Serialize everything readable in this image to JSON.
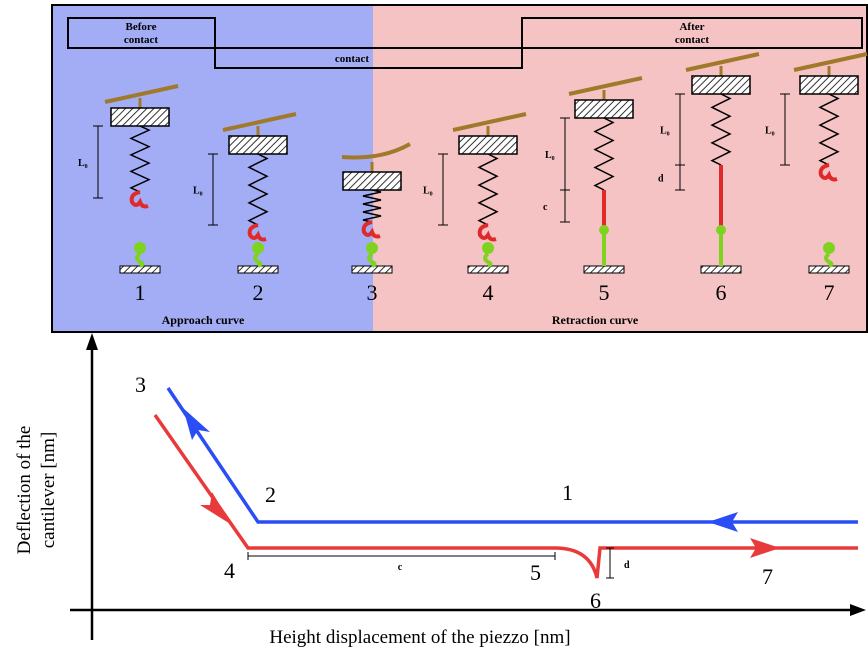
{
  "phases": {
    "before": [
      "Before",
      "contact"
    ],
    "contact": "contact",
    "after": [
      "After",
      "contact"
    ]
  },
  "stages": [
    {
      "number": "1",
      "length_label": "L₀"
    },
    {
      "number": "2",
      "length_label": "L₀"
    },
    {
      "number": "3"
    },
    {
      "number": "4",
      "length_label": "L₀"
    },
    {
      "number": "5",
      "length_label": "L₀",
      "extra_label": "c"
    },
    {
      "number": "6",
      "length_label": "L₀",
      "extra_label": "d"
    },
    {
      "number": "7",
      "length_label": "L₀"
    }
  ],
  "sections": {
    "approach": "Approach curve",
    "retraction": "Retraction curve"
  },
  "plot": {
    "y_label": [
      "Deflection of the",
      "cantilever [nm]"
    ],
    "x_label": "Height displacement of the piezzo [nm]",
    "points": [
      "1",
      "2",
      "3",
      "4",
      "5",
      "6",
      "7"
    ],
    "c_label": "c",
    "d_label": "d"
  }
}
